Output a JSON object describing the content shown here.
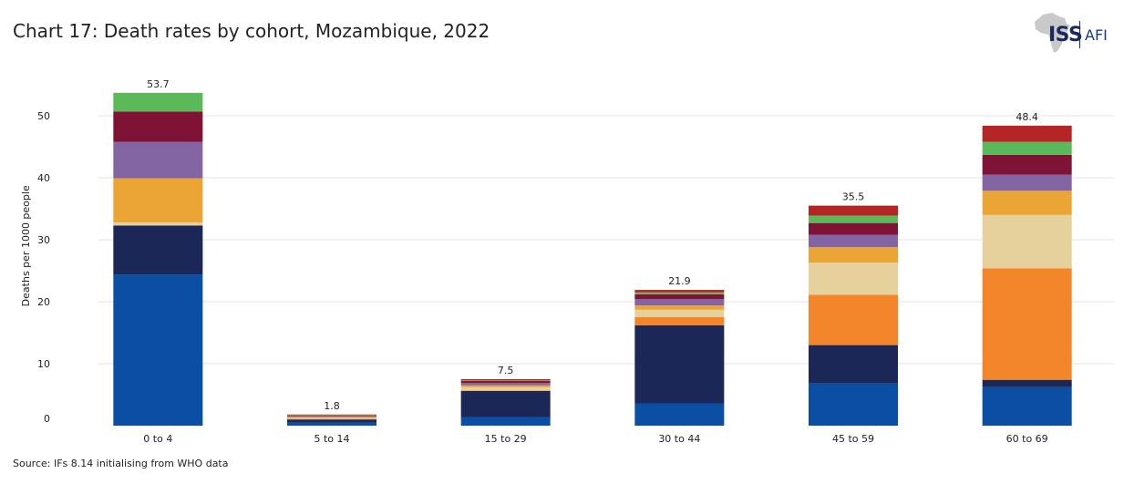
{
  "title": "Chart 17: Death rates by cohort, Mozambique, 2022",
  "source": "Source: IFs 8.14 initialising from WHO data",
  "logo": {
    "primary": "ISS",
    "secondary": "AFI",
    "icon": "africa-map-icon"
  },
  "chart_data": {
    "type": "bar",
    "stacked": true,
    "ylabel": "Deaths per 1000 people",
    "xlabel": "",
    "ylim": [
      0,
      55
    ],
    "yticks": [
      0,
      10,
      20,
      30,
      40,
      50
    ],
    "grid": true,
    "categories": [
      "0 to 4",
      "5 to 14",
      "15 to 29",
      "30 to 44",
      "45 to 59",
      "60 to 69"
    ],
    "totals": [
      53.7,
      1.8,
      7.5,
      21.9,
      35.5,
      48.4
    ],
    "total_labels": [
      "53.7",
      "1.8",
      "7.5",
      "21.9",
      "35.5",
      "48.4"
    ],
    "series": [
      {
        "color": "#0a4fa3",
        "values": [
          24.4,
          0.5,
          1.4,
          3.6,
          6.8,
          6.2
        ]
      },
      {
        "color": "#1b2756",
        "values": [
          7.9,
          0.5,
          4.2,
          12.6,
          6.2,
          1.2
        ]
      },
      {
        "color": "#f3852a",
        "values": [
          0.0,
          0.1,
          0.1,
          1.3,
          8.1,
          18.0
        ]
      },
      {
        "color": "#e6d09b",
        "values": [
          0.5,
          0.2,
          0.5,
          1.2,
          5.2,
          8.6
        ]
      },
      {
        "color": "#eaa535",
        "values": [
          7.1,
          0.1,
          0.3,
          0.7,
          2.5,
          3.9
        ]
      },
      {
        "color": "#8465a3",
        "values": [
          5.9,
          0.1,
          0.4,
          1.0,
          2.0,
          2.6
        ]
      },
      {
        "color": "#7f1335",
        "values": [
          4.9,
          0.1,
          0.3,
          0.8,
          1.9,
          3.2
        ]
      },
      {
        "color": "#5cb95a",
        "values": [
          3.0,
          0.1,
          0.1,
          0.3,
          1.2,
          2.1
        ]
      },
      {
        "color": "#b52525",
        "values": [
          0.0,
          0.1,
          0.2,
          0.4,
          1.6,
          2.6
        ]
      }
    ]
  }
}
